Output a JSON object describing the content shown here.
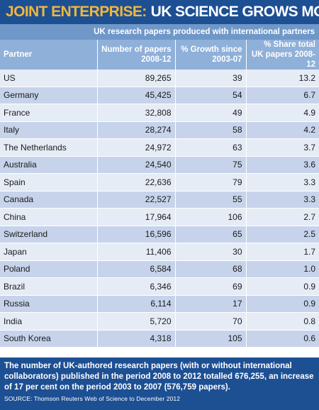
{
  "header": {
    "title_accent": "JOINT ENTERPRISE:",
    "title_rest": "UK SCIENCE GROWS MORE COLLABORATIVE",
    "subtitle": "UK research papers produced with international partners"
  },
  "table": {
    "columns": [
      "Partner",
      "Number of papers 2008-12",
      "% Growth since 2003-07",
      "% Share total UK papers 2008-12"
    ],
    "rows": [
      [
        "US",
        "89,265",
        "39",
        "13.2"
      ],
      [
        "Germany",
        "45,425",
        "54",
        "6.7"
      ],
      [
        "France",
        "32,808",
        "49",
        "4.9"
      ],
      [
        "Italy",
        "28,274",
        "58",
        "4.2"
      ],
      [
        "The Netherlands",
        "24,972",
        "63",
        "3.7"
      ],
      [
        "Australia",
        "24,540",
        "75",
        "3.6"
      ],
      [
        "Spain",
        "22,636",
        "79",
        "3.3"
      ],
      [
        "Canada",
        "22,527",
        "55",
        "3.3"
      ],
      [
        "China",
        "17,964",
        "106",
        "2.7"
      ],
      [
        "Switzerland",
        "16,596",
        "65",
        "2.5"
      ],
      [
        "Japan",
        "11,406",
        "30",
        "1.7"
      ],
      [
        "Poland",
        "6,584",
        "68",
        "1.0"
      ],
      [
        "Brazil",
        "6,346",
        "69",
        "0.9"
      ],
      [
        "Russia",
        "6,114",
        "17",
        "0.9"
      ],
      [
        "India",
        "5,720",
        "70",
        "0.8"
      ],
      [
        "South Korea",
        "4,318",
        "105",
        "0.6"
      ]
    ]
  },
  "footer": {
    "note": "The number of UK-authored research papers (with or without international collaborators) published in the period 2008 to 2012 totalled 676,255, an increase of 17 per cent on the period 2003 to 2007 (576,759 papers).",
    "source": "SOURCE: Thomson Reuters Web of Science to December 2012"
  },
  "colors": {
    "title_bg": "#1d4f93",
    "title_accent": "#f2b63b",
    "subtitle_bg": "#6f97c8",
    "header_bg": "#8fb0d9",
    "row_light": "#e6ecf6",
    "row_dark": "#c6d3ea"
  }
}
